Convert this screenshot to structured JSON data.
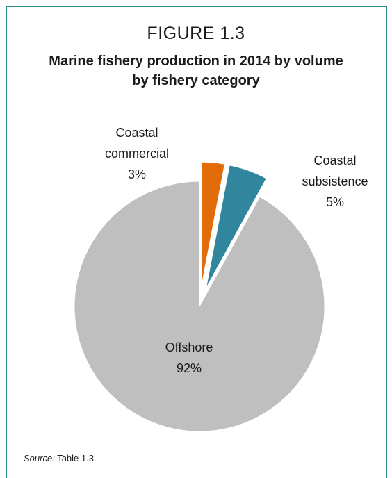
{
  "figure": {
    "number": "FIGURE 1.3",
    "title_line1": "Marine fishery production in 2014 by volume",
    "title_line2": "by fishery category"
  },
  "chart_data": {
    "type": "pie",
    "title": "Marine fishery production in 2014 by volume by fishery category",
    "slices": [
      {
        "name": "Coastal commercial",
        "label_lines": [
          "Coastal",
          "commercial"
        ],
        "value": 3,
        "value_label": "3%",
        "color": "#e36c0a",
        "exploded": true
      },
      {
        "name": "Coastal subsistence",
        "label_lines": [
          "Coastal",
          "subsistence"
        ],
        "value": 5,
        "value_label": "5%",
        "color": "#31859c",
        "exploded": true
      },
      {
        "name": "Offshore",
        "label_lines": [
          "Offshore"
        ],
        "value": 92,
        "value_label": "92%",
        "color": "#bfbfbf",
        "exploded": false
      }
    ]
  },
  "source": {
    "prefix": "Source:",
    "text": "Table 1.3."
  }
}
